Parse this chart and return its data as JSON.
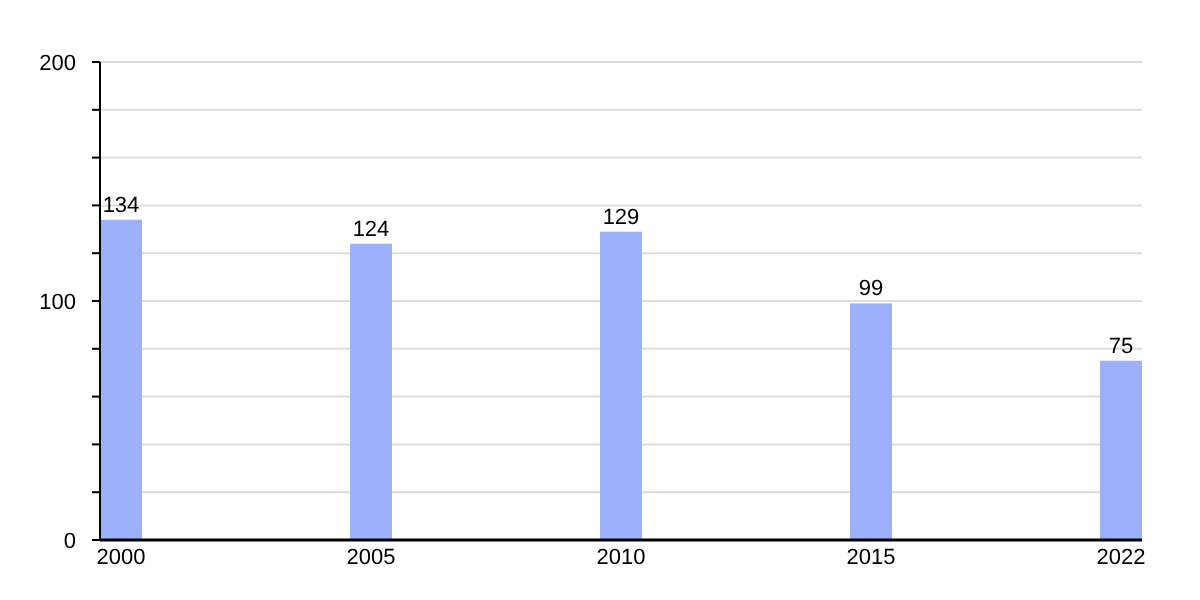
{
  "chart_data": {
    "type": "bar",
    "categories": [
      "2000",
      "2005",
      "2010",
      "2015",
      "2022"
    ],
    "values": [
      134,
      124,
      129,
      99,
      75
    ],
    "color": "#9db0fb",
    "ylim": [
      0,
      200
    ],
    "yticks": [
      0,
      {
        "value": 20,
        "label": null
      },
      {
        "value": 40,
        "label": null
      },
      {
        "value": 60,
        "label": null
      },
      {
        "value": 80,
        "label": null
      },
      100,
      {
        "value": 120,
        "label": null
      },
      {
        "value": 140,
        "label": null
      },
      {
        "value": 160,
        "label": null
      },
      {
        "value": 180,
        "label": null
      },
      200
    ],
    "grid": true,
    "data_labels": true
  }
}
